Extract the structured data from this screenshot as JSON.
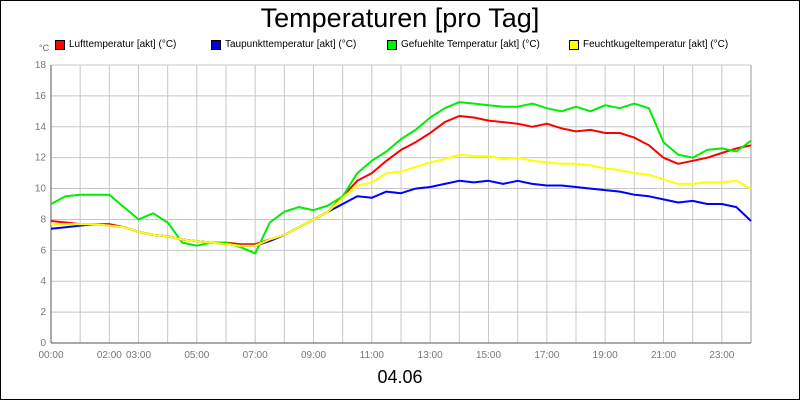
{
  "title": "Temperaturen [pro Tag]",
  "unit": "°C",
  "date_label": "04.06",
  "chart_data": {
    "type": "line",
    "title": "Temperaturen [pro Tag]",
    "x_unit": "hours",
    "xlim": [
      0,
      24
    ],
    "ylim": [
      0,
      18
    ],
    "y_ticks": [
      "0",
      "2",
      "4",
      "6",
      "8",
      "10",
      "12",
      "14",
      "16",
      "18"
    ],
    "x_ticks": [
      {
        "pos": 0,
        "label": "00:00"
      },
      {
        "pos": 2,
        "label": "02:00"
      },
      {
        "pos": 3,
        "label": "03:00"
      },
      {
        "pos": 5,
        "label": "05:00"
      },
      {
        "pos": 7,
        "label": "07:00"
      },
      {
        "pos": 9,
        "label": "09:00"
      },
      {
        "pos": 11,
        "label": "11:00"
      },
      {
        "pos": 13,
        "label": "13:00"
      },
      {
        "pos": 15,
        "label": "15:00"
      },
      {
        "pos": 17,
        "label": "17:00"
      },
      {
        "pos": 19,
        "label": "19:00"
      },
      {
        "pos": 21,
        "label": "21:00"
      },
      {
        "pos": 23,
        "label": "23:00"
      }
    ],
    "grid": true,
    "legend_position": "top",
    "series": [
      {
        "name": "Lufttemperatur [akt] (°C)",
        "color": "#ff0000",
        "x": [
          0,
          0.5,
          1,
          1.5,
          2,
          2.5,
          3,
          3.5,
          4,
          4.5,
          5,
          5.5,
          6,
          6.5,
          7,
          7.5,
          8,
          8.5,
          9,
          9.5,
          10,
          10.5,
          11,
          11.5,
          12,
          12.5,
          13,
          13.5,
          14,
          14.5,
          15,
          15.5,
          16,
          16.5,
          17,
          17.5,
          18,
          18.5,
          19,
          19.5,
          20,
          20.5,
          21,
          21.5,
          22,
          22.5,
          23,
          23.5,
          24
        ],
        "y": [
          7.9,
          7.8,
          7.7,
          7.7,
          7.7,
          7.5,
          7.2,
          7.0,
          6.9,
          6.7,
          6.6,
          6.5,
          6.5,
          6.4,
          6.4,
          6.7,
          7.0,
          7.5,
          8.0,
          8.5,
          9.5,
          10.5,
          11.0,
          11.8,
          12.5,
          13.0,
          13.6,
          14.3,
          14.7,
          14.6,
          14.4,
          14.3,
          14.2,
          14.0,
          14.2,
          13.9,
          13.7,
          13.8,
          13.6,
          13.6,
          13.3,
          12.8,
          12.0,
          11.6,
          11.8,
          12.0,
          12.3,
          12.6,
          12.8
        ]
      },
      {
        "name": "Taupunkttemperatur [akt] (°C)",
        "color": "#0000ff",
        "x": [
          0,
          0.5,
          1,
          1.5,
          2,
          2.5,
          3,
          3.5,
          4,
          4.5,
          5,
          5.5,
          6,
          6.5,
          7,
          7.5,
          8,
          8.5,
          9,
          9.5,
          10,
          10.5,
          11,
          11.5,
          12,
          12.5,
          13,
          13.5,
          14,
          14.5,
          15,
          15.5,
          16,
          16.5,
          17,
          17.5,
          18,
          18.5,
          19,
          19.5,
          20,
          20.5,
          21,
          21.5,
          22,
          22.5,
          23,
          23.5,
          24
        ],
        "y": [
          7.4,
          7.5,
          7.6,
          7.7,
          7.6,
          7.5,
          7.2,
          7.0,
          6.9,
          6.7,
          6.6,
          6.5,
          6.4,
          6.3,
          6.3,
          6.6,
          7.0,
          7.5,
          8.0,
          8.5,
          9.0,
          9.5,
          9.4,
          9.8,
          9.7,
          10.0,
          10.1,
          10.3,
          10.5,
          10.4,
          10.5,
          10.3,
          10.5,
          10.3,
          10.2,
          10.2,
          10.1,
          10.0,
          9.9,
          9.8,
          9.6,
          9.5,
          9.3,
          9.1,
          9.2,
          9.0,
          9.0,
          8.8,
          7.9
        ]
      },
      {
        "name": "Gefuehlte Temperatur [akt] (°C)",
        "color": "#00ee00",
        "x": [
          0,
          0.5,
          1,
          1.5,
          2,
          2.5,
          3,
          3.5,
          4,
          4.5,
          5,
          5.5,
          6,
          6.5,
          7,
          7.5,
          8,
          8.5,
          9,
          9.5,
          10,
          10.5,
          11,
          11.5,
          12,
          12.5,
          13,
          13.5,
          14,
          14.5,
          15,
          15.5,
          16,
          16.5,
          17,
          17.5,
          18,
          18.5,
          19,
          19.5,
          20,
          20.5,
          21,
          21.5,
          22,
          22.5,
          23,
          23.5,
          24
        ],
        "y": [
          9.0,
          9.5,
          9.6,
          9.6,
          9.6,
          8.8,
          8.0,
          8.4,
          7.8,
          6.5,
          6.3,
          6.5,
          6.5,
          6.2,
          5.8,
          7.8,
          8.5,
          8.8,
          8.6,
          8.9,
          9.5,
          11.0,
          11.8,
          12.4,
          13.2,
          13.8,
          14.6,
          15.2,
          15.6,
          15.5,
          15.4,
          15.3,
          15.3,
          15.5,
          15.2,
          15.0,
          15.3,
          15.0,
          15.4,
          15.2,
          15.5,
          15.2,
          13.0,
          12.2,
          12.0,
          12.5,
          12.6,
          12.4,
          13.1
        ]
      },
      {
        "name": "Feuchtkugeltemperatur [akt] (°C)",
        "color": "#ffff00",
        "x": [
          0,
          0.5,
          1,
          1.5,
          2,
          2.5,
          3,
          3.5,
          4,
          4.5,
          5,
          5.5,
          6,
          6.5,
          7,
          7.5,
          8,
          8.5,
          9,
          9.5,
          10,
          10.5,
          11,
          11.5,
          12,
          12.5,
          13,
          13.5,
          14,
          14.5,
          15,
          15.5,
          16,
          16.5,
          17,
          17.5,
          18,
          18.5,
          19,
          19.5,
          20,
          20.5,
          21,
          21.5,
          22,
          22.5,
          23,
          23.5,
          24
        ],
        "y": [
          7.7,
          7.7,
          7.7,
          7.7,
          7.6,
          7.5,
          7.2,
          7.0,
          6.9,
          6.7,
          6.6,
          6.5,
          6.4,
          6.3,
          6.3,
          6.7,
          7.0,
          7.5,
          8.0,
          8.5,
          9.4,
          10.2,
          10.4,
          11.0,
          11.1,
          11.4,
          11.7,
          11.9,
          12.2,
          12.1,
          12.1,
          11.9,
          12.0,
          11.8,
          11.7,
          11.6,
          11.6,
          11.5,
          11.3,
          11.2,
          11.0,
          10.9,
          10.6,
          10.3,
          10.3,
          10.4,
          10.4,
          10.5,
          10.0
        ]
      }
    ]
  }
}
